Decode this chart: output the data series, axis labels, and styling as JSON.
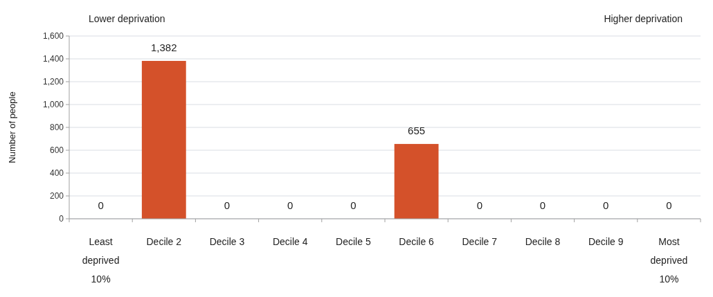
{
  "chart_data": {
    "type": "bar",
    "ylabel": "Number of people",
    "categories": [
      "Least deprived 10%",
      "Decile 2",
      "Decile 3",
      "Decile 4",
      "Decile 5",
      "Decile 6",
      "Decile 7",
      "Decile 8",
      "Decile 9",
      "Most deprived 10%"
    ],
    "values": [
      0,
      1382,
      0,
      0,
      0,
      655,
      0,
      0,
      0,
      0
    ],
    "value_labels": [
      "0",
      "1,382",
      "0",
      "0",
      "0",
      "655",
      "0",
      "0",
      "0",
      "0"
    ],
    "color": "#d4512a",
    "ylim": [
      0,
      1600
    ],
    "yticks": [
      0,
      200,
      400,
      600,
      800,
      {
        "value": 1000,
        "label": "1,000"
      },
      {
        "value": 1200,
        "label": "1,200"
      },
      {
        "value": 1400,
        "label": "1,400"
      },
      {
        "value": 1600,
        "label": "1,600"
      }
    ],
    "grid": "y",
    "annotations": [
      "Lower deprivation",
      "Higher deprivation"
    ]
  }
}
